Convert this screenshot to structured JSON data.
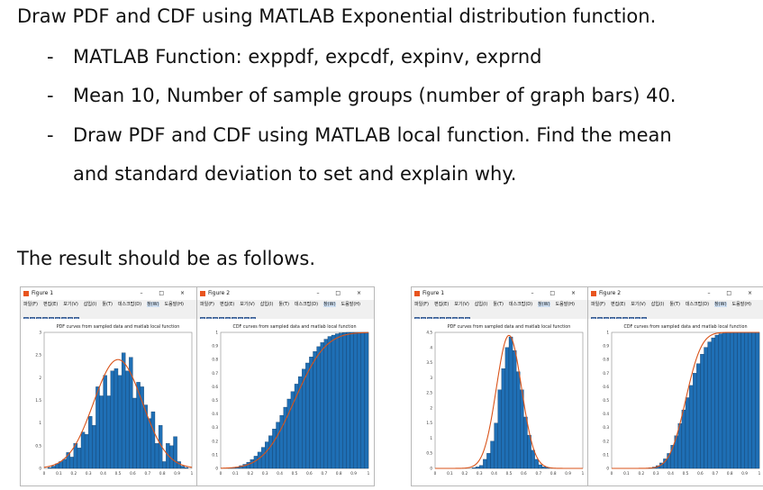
{
  "text": {
    "intro": "Draw PDF and CDF using MATLAB Exponential distribution function.",
    "bullet_marker": "-",
    "bullets": [
      "MATLAB Function: exppdf, expcdf, expinv, exprnd",
      "Mean 10, Number of sample groups (number of graph bars) 40.",
      "Draw PDF and CDF using MATLAB local function. Find the mean",
      "and standard deviation to set and explain why."
    ],
    "result": "The result should be as follows."
  },
  "window_chrome": {
    "menu_items": [
      "파일(F)",
      "편집(E)",
      "보기(V)",
      "삽입(I)",
      "툴(T)",
      "데스크탑(D)",
      "창(W)",
      "도움말(H)"
    ],
    "controls": "– □ ×"
  },
  "colors": {
    "bar_fill": "#1f6fb5",
    "bar_edge": "#0b2f55",
    "curve": "#d95319"
  },
  "figures": [
    {
      "window_title": "Figure 1",
      "chart_data": {
        "type": "bar",
        "title": "PDF curves from sampled data and matlab local function",
        "xlim": [
          0,
          1
        ],
        "ylim": [
          0,
          3
        ],
        "xticks": [
          "0",
          "0.1",
          "0.2",
          "0.3",
          "0.4",
          "0.5",
          "0.6",
          "0.7",
          "0.8",
          "0.9",
          "1"
        ],
        "yticks": [
          "0",
          "0.5",
          "1",
          "1.5",
          "2",
          "2.5",
          "3"
        ],
        "bins": 40,
        "values": [
          0,
          0.02,
          0.05,
          0.1,
          0.15,
          0.2,
          0.35,
          0.25,
          0.55,
          0.45,
          0.8,
          0.75,
          1.15,
          0.95,
          1.8,
          1.6,
          2.05,
          1.6,
          2.15,
          2.2,
          2.05,
          2.55,
          2.15,
          2.45,
          1.55,
          1.9,
          1.8,
          1.4,
          1.1,
          1.25,
          0.55,
          0.95,
          0.15,
          0.55,
          0.5,
          0.7,
          0.15,
          0.05,
          0.02,
          0
        ],
        "curve": {
          "shape": "gaussian",
          "mean": 0.5,
          "sd": 0.165,
          "peak": 2.4
        }
      }
    },
    {
      "window_title": "Figure 2",
      "chart_data": {
        "type": "bar",
        "title": "CDF curves from sampled data and matlab local function",
        "xlim": [
          0,
          1
        ],
        "ylim": [
          0,
          1
        ],
        "xticks": [
          "0",
          "0.1",
          "0.2",
          "0.3",
          "0.4",
          "0.5",
          "0.6",
          "0.7",
          "0.8",
          "0.9",
          "1"
        ],
        "yticks": [
          "0",
          "0.1",
          "0.2",
          "0.3",
          "0.4",
          "0.5",
          "0.6",
          "0.7",
          "0.8",
          "0.9",
          "1"
        ],
        "bins": 40,
        "values": [
          0,
          0,
          0.002,
          0.005,
          0.01,
          0.02,
          0.03,
          0.045,
          0.065,
          0.09,
          0.12,
          0.155,
          0.195,
          0.24,
          0.29,
          0.34,
          0.39,
          0.45,
          0.51,
          0.565,
          0.62,
          0.675,
          0.73,
          0.775,
          0.82,
          0.86,
          0.895,
          0.925,
          0.95,
          0.97,
          0.98,
          0.99,
          0.995,
          0.998,
          1,
          1,
          1,
          1,
          1,
          1
        ],
        "curve": {
          "shape": "gaussian_cdf",
          "mean": 0.5,
          "sd": 0.165
        }
      }
    },
    {
      "window_title": "Figure 1",
      "chart_data": {
        "type": "bar",
        "title": "PDF curves from sampled data and matlab local function",
        "xlim": [
          0,
          1
        ],
        "ylim": [
          0,
          4.5
        ],
        "xticks": [
          "0",
          "0.1",
          "0.2",
          "0.3",
          "0.4",
          "0.5",
          "0.6",
          "0.7",
          "0.8",
          "0.9",
          "1"
        ],
        "yticks": [
          "0",
          "0.5",
          "1",
          "1.5",
          "2",
          "2.5",
          "3",
          "3.5",
          "4",
          "4.5"
        ],
        "bins": 40,
        "values": [
          0,
          0,
          0,
          0,
          0,
          0,
          0,
          0,
          0,
          0,
          0.02,
          0.05,
          0.1,
          0.3,
          0.5,
          0.9,
          1.5,
          2.6,
          3.3,
          4.0,
          4.35,
          3.9,
          3.2,
          2.6,
          1.7,
          1.1,
          0.6,
          0.3,
          0.12,
          0.05,
          0.02,
          0,
          0,
          0,
          0,
          0,
          0,
          0,
          0,
          0
        ],
        "curve": {
          "shape": "gaussian",
          "mean": 0.5,
          "sd": 0.085,
          "peak": 4.4
        }
      }
    },
    {
      "window_title": "Figure 2",
      "chart_data": {
        "type": "bar",
        "title": "CDF curves from sampled data and matlab local function",
        "xlim": [
          0,
          1
        ],
        "ylim": [
          0,
          1
        ],
        "xticks": [
          "0",
          "0.1",
          "0.2",
          "0.3",
          "0.4",
          "0.5",
          "0.6",
          "0.7",
          "0.8",
          "0.9",
          "1"
        ],
        "yticks": [
          "0",
          "0.1",
          "0.2",
          "0.3",
          "0.4",
          "0.5",
          "0.6",
          "0.7",
          "0.8",
          "0.9",
          "1"
        ],
        "bins": 40,
        "values": [
          0,
          0,
          0,
          0,
          0,
          0,
          0,
          0,
          0,
          0.002,
          0.005,
          0.01,
          0.02,
          0.04,
          0.07,
          0.11,
          0.17,
          0.24,
          0.33,
          0.43,
          0.52,
          0.61,
          0.7,
          0.77,
          0.84,
          0.89,
          0.93,
          0.96,
          0.98,
          0.99,
          0.995,
          1,
          1,
          1,
          1,
          1,
          1,
          1,
          1,
          1
        ],
        "curve": {
          "shape": "gaussian_cdf",
          "mean": 0.5,
          "sd": 0.085
        }
      }
    }
  ]
}
